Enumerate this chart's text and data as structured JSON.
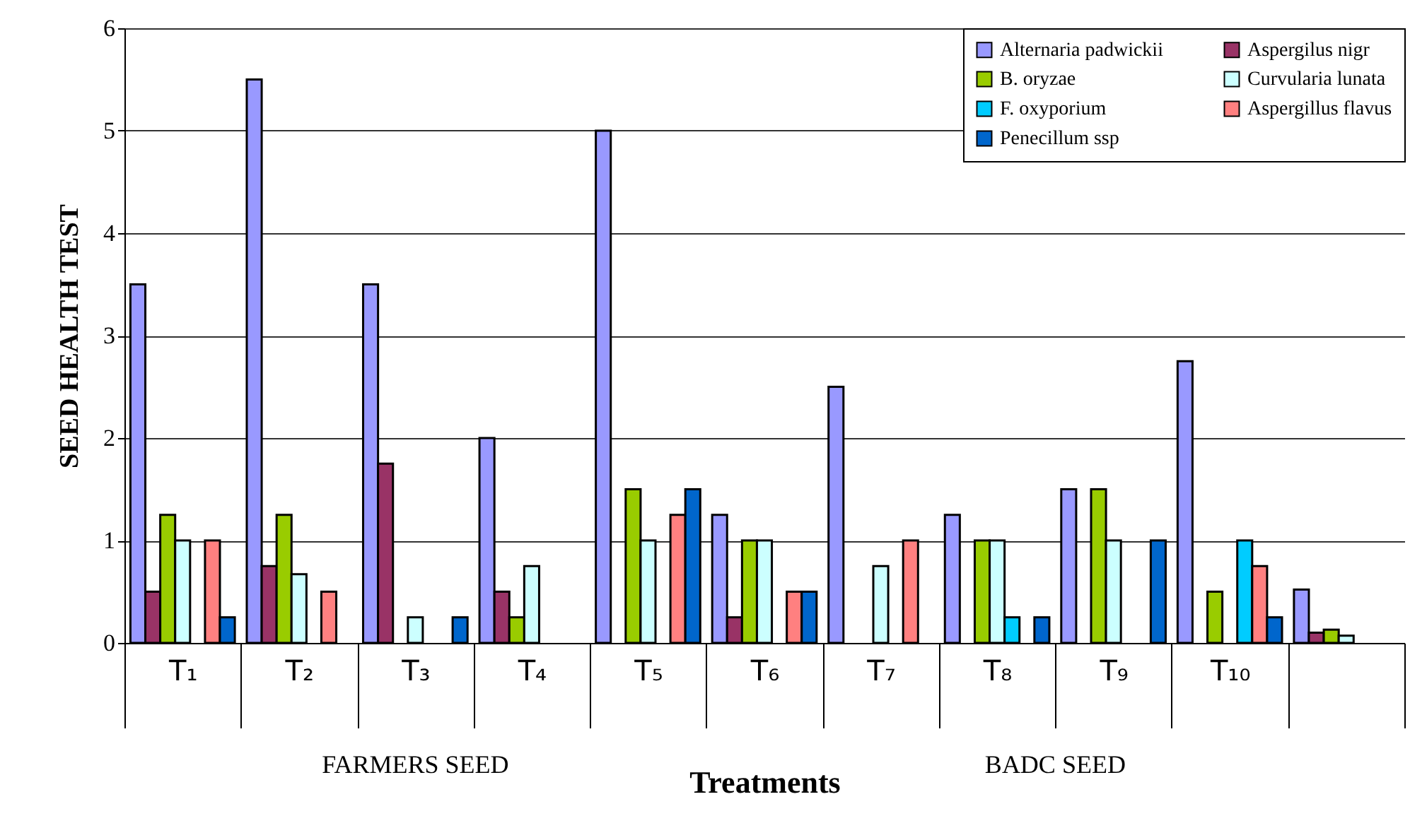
{
  "chart_data": {
    "type": "bar",
    "ylabel": "SEED HEALTH TEST",
    "xlabel": "Treatments",
    "categories": [
      "T₁",
      "T₂",
      "T₃",
      "T₄",
      "T₅",
      "T₆",
      "T₇",
      "T₈",
      "T₉",
      "T₁₀",
      null
    ],
    "series": [
      {
        "name": "Alternaria padwickii",
        "color": "#9999ff",
        "values": [
          3.5,
          5.5,
          3.5,
          2.0,
          5.0,
          1.25,
          2.5,
          1.25,
          1.5,
          2.75,
          0.52
        ]
      },
      {
        "name": "Aspergilus nigr",
        "color": "#993366",
        "values": [
          0.5,
          0.75,
          1.75,
          0.5,
          null,
          0.25,
          null,
          null,
          null,
          null,
          0.1
        ]
      },
      {
        "name": "B. oryzae",
        "color": "#99cc00",
        "values": [
          1.25,
          1.25,
          null,
          0.25,
          1.5,
          1.0,
          null,
          1.0,
          1.5,
          0.5,
          0.13
        ]
      },
      {
        "name": "Curvularia lunata",
        "color": "#ccffff",
        "values": [
          1.0,
          0.67,
          0.25,
          0.75,
          1.0,
          1.0,
          0.75,
          1.0,
          1.0,
          null,
          0.07
        ]
      },
      {
        "name": "F. oxyporium",
        "color": "#00ccff",
        "values": [
          null,
          null,
          null,
          null,
          null,
          null,
          null,
          0.25,
          null,
          1.0,
          null
        ]
      },
      {
        "name": "Aspergillus flavus",
        "color": "#ff8080",
        "values": [
          1.0,
          0.5,
          null,
          null,
          1.25,
          0.5,
          1.0,
          null,
          null,
          0.75,
          null
        ]
      },
      {
        "name": "Penecillum ssp",
        "color": "#0066cc",
        "values": [
          0.25,
          null,
          0.25,
          null,
          1.5,
          0.5,
          null,
          0.25,
          1.0,
          0.25,
          null
        ]
      }
    ],
    "ylim": [
      0,
      6
    ],
    "yticks": [
      0,
      1,
      2,
      3,
      4,
      5,
      6
    ],
    "grid": "y",
    "legend": "top right",
    "annotations": [
      "FARMERS SEED",
      "BADC SEED"
    ]
  }
}
